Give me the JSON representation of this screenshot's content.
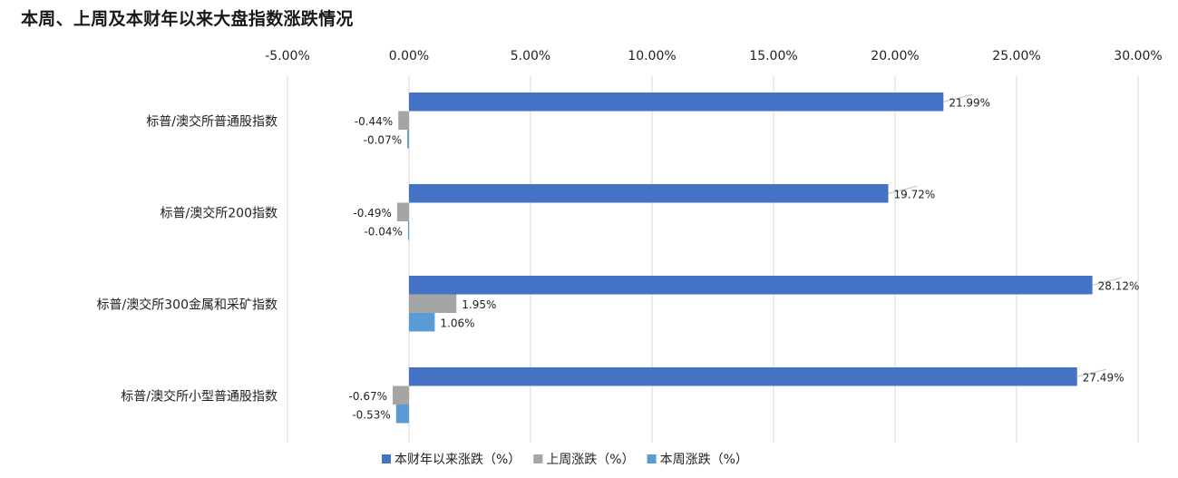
{
  "chart_data": {
    "type": "bar",
    "orientation": "horizontal",
    "title": "本周、上周及本财年以来大盘指数涨跌情况",
    "categories": [
      "标普/澳交所普通股指数",
      "标普/澳交所200指数",
      "标普/澳交所300金属和采矿指数",
      "标普/澳交所小型普通股指数"
    ],
    "series": [
      {
        "name": "本财年以来涨跌（%）",
        "values": [
          21.99,
          19.72,
          28.12,
          27.49
        ],
        "labels": [
          "21.99%",
          "19.72%",
          "28.12%",
          "27.49%"
        ],
        "color": "#4472C4"
      },
      {
        "name": "上周涨跌（%）",
        "values": [
          -0.44,
          -0.49,
          1.95,
          -0.67
        ],
        "labels": [
          "-0.44%",
          "-0.49%",
          "1.95%",
          "-0.67%"
        ],
        "color": "#A5A5A5"
      },
      {
        "name": "本周涨跌（%）",
        "values": [
          -0.07,
          -0.04,
          1.06,
          -0.53
        ],
        "labels": [
          "-0.07%",
          "-0.04%",
          "1.06%",
          "-0.53%"
        ],
        "color": "#5B9BD5"
      }
    ],
    "xlim": [
      -5,
      30
    ],
    "xticks": [
      -5,
      0,
      5,
      10,
      15,
      20,
      25,
      30
    ],
    "xtick_labels": [
      "-5.00%",
      "0.00%",
      "5.00%",
      "10.00%",
      "15.00%",
      "20.00%",
      "25.00%",
      "30.00%"
    ],
    "xaxis_position": "top",
    "grid": true,
    "legend": "bottom",
    "xlabel": "",
    "ylabel": ""
  }
}
